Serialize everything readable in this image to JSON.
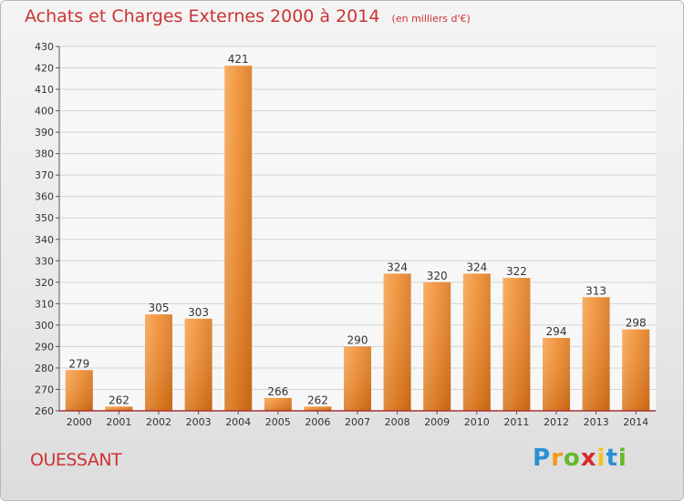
{
  "chart_data": {
    "type": "bar",
    "title": "Achats et Charges Externes 2000 à 2014",
    "unit": "(en milliers d'€)",
    "categories": [
      "2000",
      "2001",
      "2002",
      "2003",
      "2004",
      "2005",
      "2006",
      "2007",
      "2008",
      "2009",
      "2010",
      "2011",
      "2012",
      "2013",
      "2014"
    ],
    "values": [
      279,
      262,
      305,
      303,
      421,
      266,
      262,
      290,
      324,
      320,
      324,
      322,
      294,
      313,
      298
    ],
    "ylim": [
      260,
      430
    ],
    "yticks": [
      260,
      270,
      280,
      290,
      300,
      310,
      320,
      330,
      340,
      350,
      360,
      370,
      380,
      390,
      400,
      410,
      420,
      430
    ],
    "grid": true,
    "bar_color": "#f08a2a",
    "title_color": "#cc3333"
  },
  "location": "OUESSANT",
  "brand": {
    "letters": [
      "P",
      "r",
      "o",
      "x",
      "i",
      "t",
      "i"
    ],
    "colors": [
      "#2b8fd6",
      "#f29a1e",
      "#63b82d",
      "#d62b2b",
      "#f2c21e",
      "#2b8fd6",
      "#63b82d"
    ]
  }
}
